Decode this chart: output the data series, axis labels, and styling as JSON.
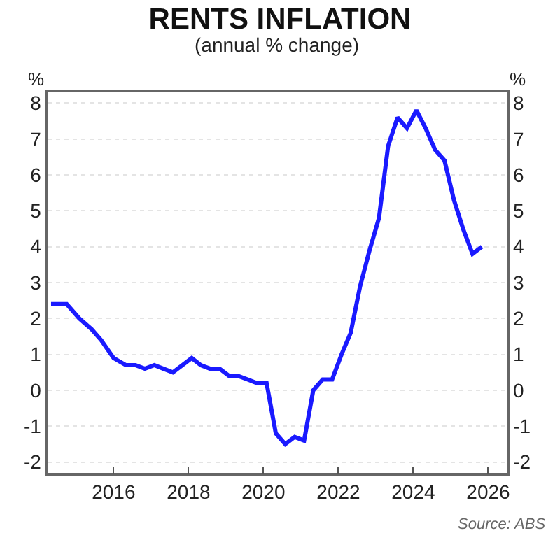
{
  "chart_data": {
    "type": "line",
    "title": "RENTS INFLATION",
    "subtitle": "(annual % change)",
    "ylabel": "%",
    "y2label": "%",
    "annotations": [
      "Source: ABS"
    ],
    "x": [
      "2014-05",
      "2014-08",
      "2014-10",
      "2015-02",
      "2015-06",
      "2015-09",
      "2016-01",
      "2016-05",
      "2016-08",
      "2016-11",
      "2017-02",
      "2017-05",
      "2017-08",
      "2017-11",
      "2018-02",
      "2018-05",
      "2018-08",
      "2018-11",
      "2019-02",
      "2019-05",
      "2019-08",
      "2019-11",
      "2020-02",
      "2020-05",
      "2020-08",
      "2020-11",
      "2021-02",
      "2021-05",
      "2021-08",
      "2021-11",
      "2022-02",
      "2022-05",
      "2022-08",
      "2022-11",
      "2023-02",
      "2023-05",
      "2023-08",
      "2023-11",
      "2024-02",
      "2024-05",
      "2024-08",
      "2024-11",
      "2025-02",
      "2025-05",
      "2025-08",
      "2025-11"
    ],
    "series": [
      {
        "color": "#1a1aff",
        "values": [
          2.4,
          2.4,
          2.4,
          2.0,
          1.7,
          1.4,
          0.9,
          0.7,
          0.7,
          0.6,
          0.7,
          0.6,
          0.5,
          0.7,
          0.9,
          0.7,
          0.6,
          0.6,
          0.4,
          0.4,
          0.3,
          0.2,
          0.2,
          -1.2,
          -1.5,
          -1.3,
          -1.4,
          0.0,
          0.3,
          0.3,
          1.0,
          1.6,
          2.9,
          3.9,
          4.8,
          6.8,
          7.6,
          7.3,
          7.8,
          7.3,
          6.7,
          6.4,
          5.3,
          4.5,
          3.8,
          4.0
        ]
      }
    ],
    "xlim": [
      "2014-03-28",
      "2026-07-01"
    ],
    "xticks": [
      "2016",
      "2018",
      "2020",
      "2022",
      "2024",
      "2026"
    ],
    "ylim": [
      -2.3,
      8.3
    ],
    "yticks": [
      -2,
      -1,
      0,
      1,
      2,
      3,
      4,
      5,
      6,
      7,
      8
    ],
    "y2lim": [
      -2.3,
      8.3
    ],
    "y2ticks": [
      -2,
      -1,
      0,
      1,
      2,
      3,
      4,
      5,
      6,
      7,
      8
    ],
    "grid": "y",
    "marker": "none",
    "line_style": "solid"
  }
}
